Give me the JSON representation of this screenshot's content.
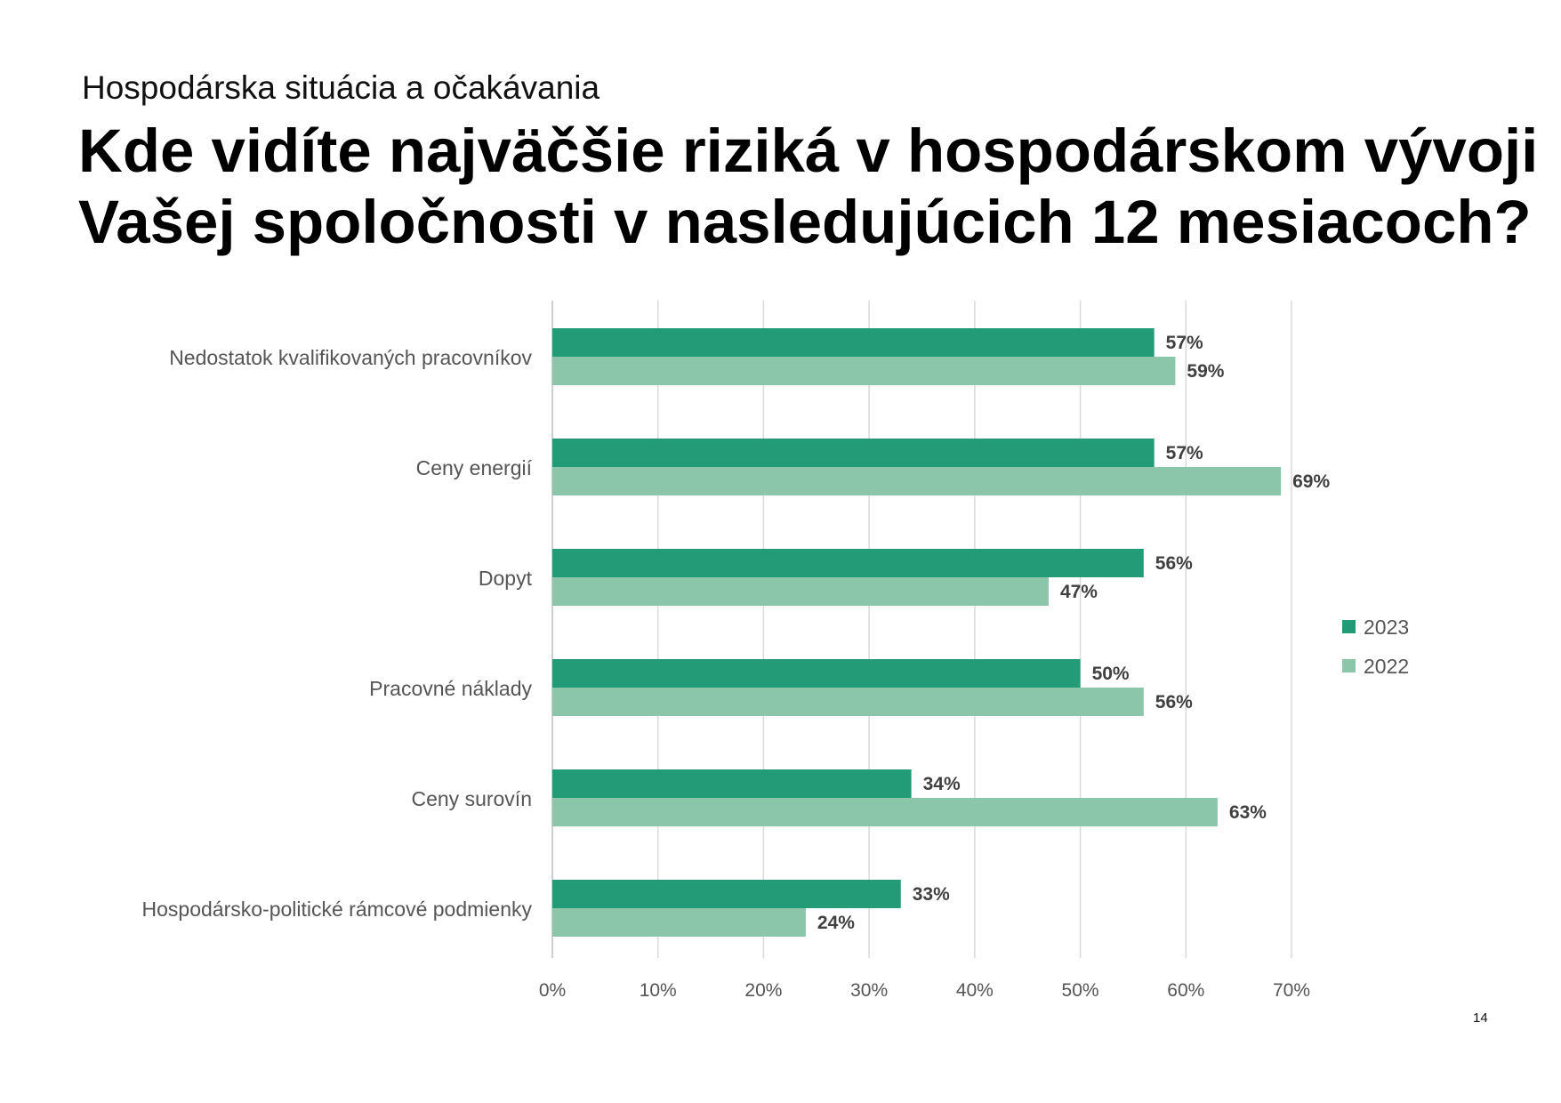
{
  "header": {
    "subtitle": "Hospodárska situácia a očakávania",
    "title_line1": "Kde vidíte najväčšie riziká v hospodárskom vývoji",
    "title_line2": "Vašej spoločnosti v nasledujúcich 12 mesiacoch?"
  },
  "page_number": "14",
  "chart_data": {
    "type": "bar",
    "orientation": "horizontal",
    "categories": [
      "Nedostatok kvalifikovaných pracovníkov",
      "Ceny energií",
      "Dopyt",
      "Pracovné náklady",
      "Ceny surovín",
      "Hospodársko-politické rámcové podmienky"
    ],
    "series": [
      {
        "name": "2023",
        "color": "#239b77",
        "values": [
          57,
          57,
          56,
          50,
          34,
          33
        ]
      },
      {
        "name": "2022",
        "color": "#8bc5aa",
        "values": [
          59,
          69,
          47,
          56,
          63,
          24
        ]
      }
    ],
    "x_ticks": [
      0,
      10,
      20,
      30,
      40,
      50,
      60,
      70
    ],
    "x_tick_labels": [
      "0%",
      "10%",
      "20%",
      "30%",
      "40%",
      "50%",
      "60%",
      "70%"
    ],
    "xlim": [
      0,
      70
    ],
    "value_suffix": "%",
    "grid": "vertical",
    "legend_position": "right"
  }
}
